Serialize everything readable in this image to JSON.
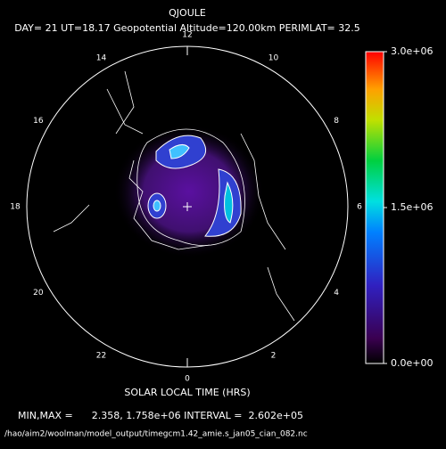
{
  "title": "QJOULE",
  "subtitle": "DAY= 21 UT=18.17 Geopotential Altitude=120.00km PERIMLAT= 32.5",
  "hour_labels": [
    "12",
    "10",
    "8",
    "6",
    "4",
    "2",
    "0",
    "22",
    "20",
    "18",
    "16",
    "14"
  ],
  "colorbar": {
    "lim": [
      0,
      3000000
    ],
    "ticks": [
      {
        "value": 0,
        "label": "0.0e+00"
      },
      {
        "value": 1500000,
        "label": "1.5e+06"
      },
      {
        "value": 3000000,
        "label": "3.0e+06"
      }
    ]
  },
  "xlabel": "SOLAR LOCAL TIME (HRS)",
  "stats": "MIN,MAX =      2.358, 1.758e+06 INTERVAL =  2.602e+05",
  "file": "/hao/aim2/woolman/model_output/timegcm1.42_amie.s_jan05_cian_082.nc"
}
